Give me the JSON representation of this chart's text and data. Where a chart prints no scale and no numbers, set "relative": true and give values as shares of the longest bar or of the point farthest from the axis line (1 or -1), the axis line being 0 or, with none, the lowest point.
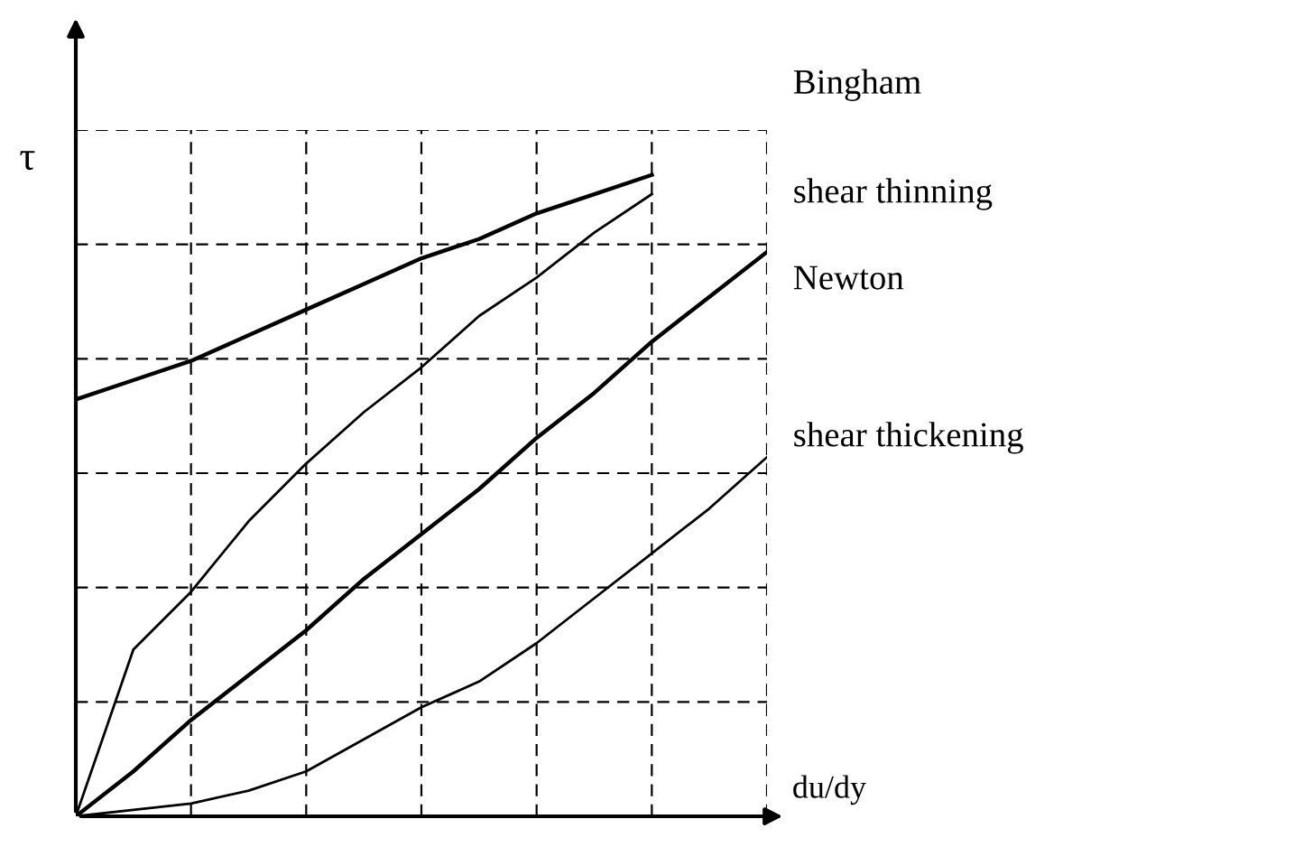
{
  "chart_data": {
    "type": "line",
    "relative": true,
    "ylabel": "τ",
    "xlabel": "du/dy",
    "grid": true,
    "line_style": "solid",
    "marker": "none",
    "legend": false,
    "categories": [
      null,
      null,
      null,
      null,
      null,
      null,
      null,
      null,
      null,
      null,
      null,
      null,
      null
    ],
    "series": [
      {
        "name": "Bingham",
        "color": "#000000",
        "values": [
          0.65,
          0.68,
          0.71,
          0.75,
          0.79,
          0.83,
          0.87,
          0.9,
          0.94,
          0.97,
          1.0,
          null,
          null
        ]
      },
      {
        "name": "shear thinning",
        "color": "#000000",
        "values": [
          0,
          0.26,
          0.35,
          0.46,
          0.55,
          0.63,
          0.7,
          0.78,
          0.84,
          0.91,
          0.97,
          null,
          null
        ]
      },
      {
        "name": "Newton",
        "color": "#000000",
        "values": [
          0,
          0.07,
          0.15,
          0.22,
          0.29,
          0.37,
          0.44,
          0.51,
          0.59,
          0.66,
          0.74,
          0.81,
          0.88
        ]
      },
      {
        "name": "shear thickening",
        "color": "#000000",
        "values": [
          0,
          0.01,
          0.02,
          0.04,
          0.07,
          0.12,
          0.17,
          0.21,
          0.27,
          0.34,
          0.41,
          0.48,
          0.56
        ]
      }
    ]
  }
}
